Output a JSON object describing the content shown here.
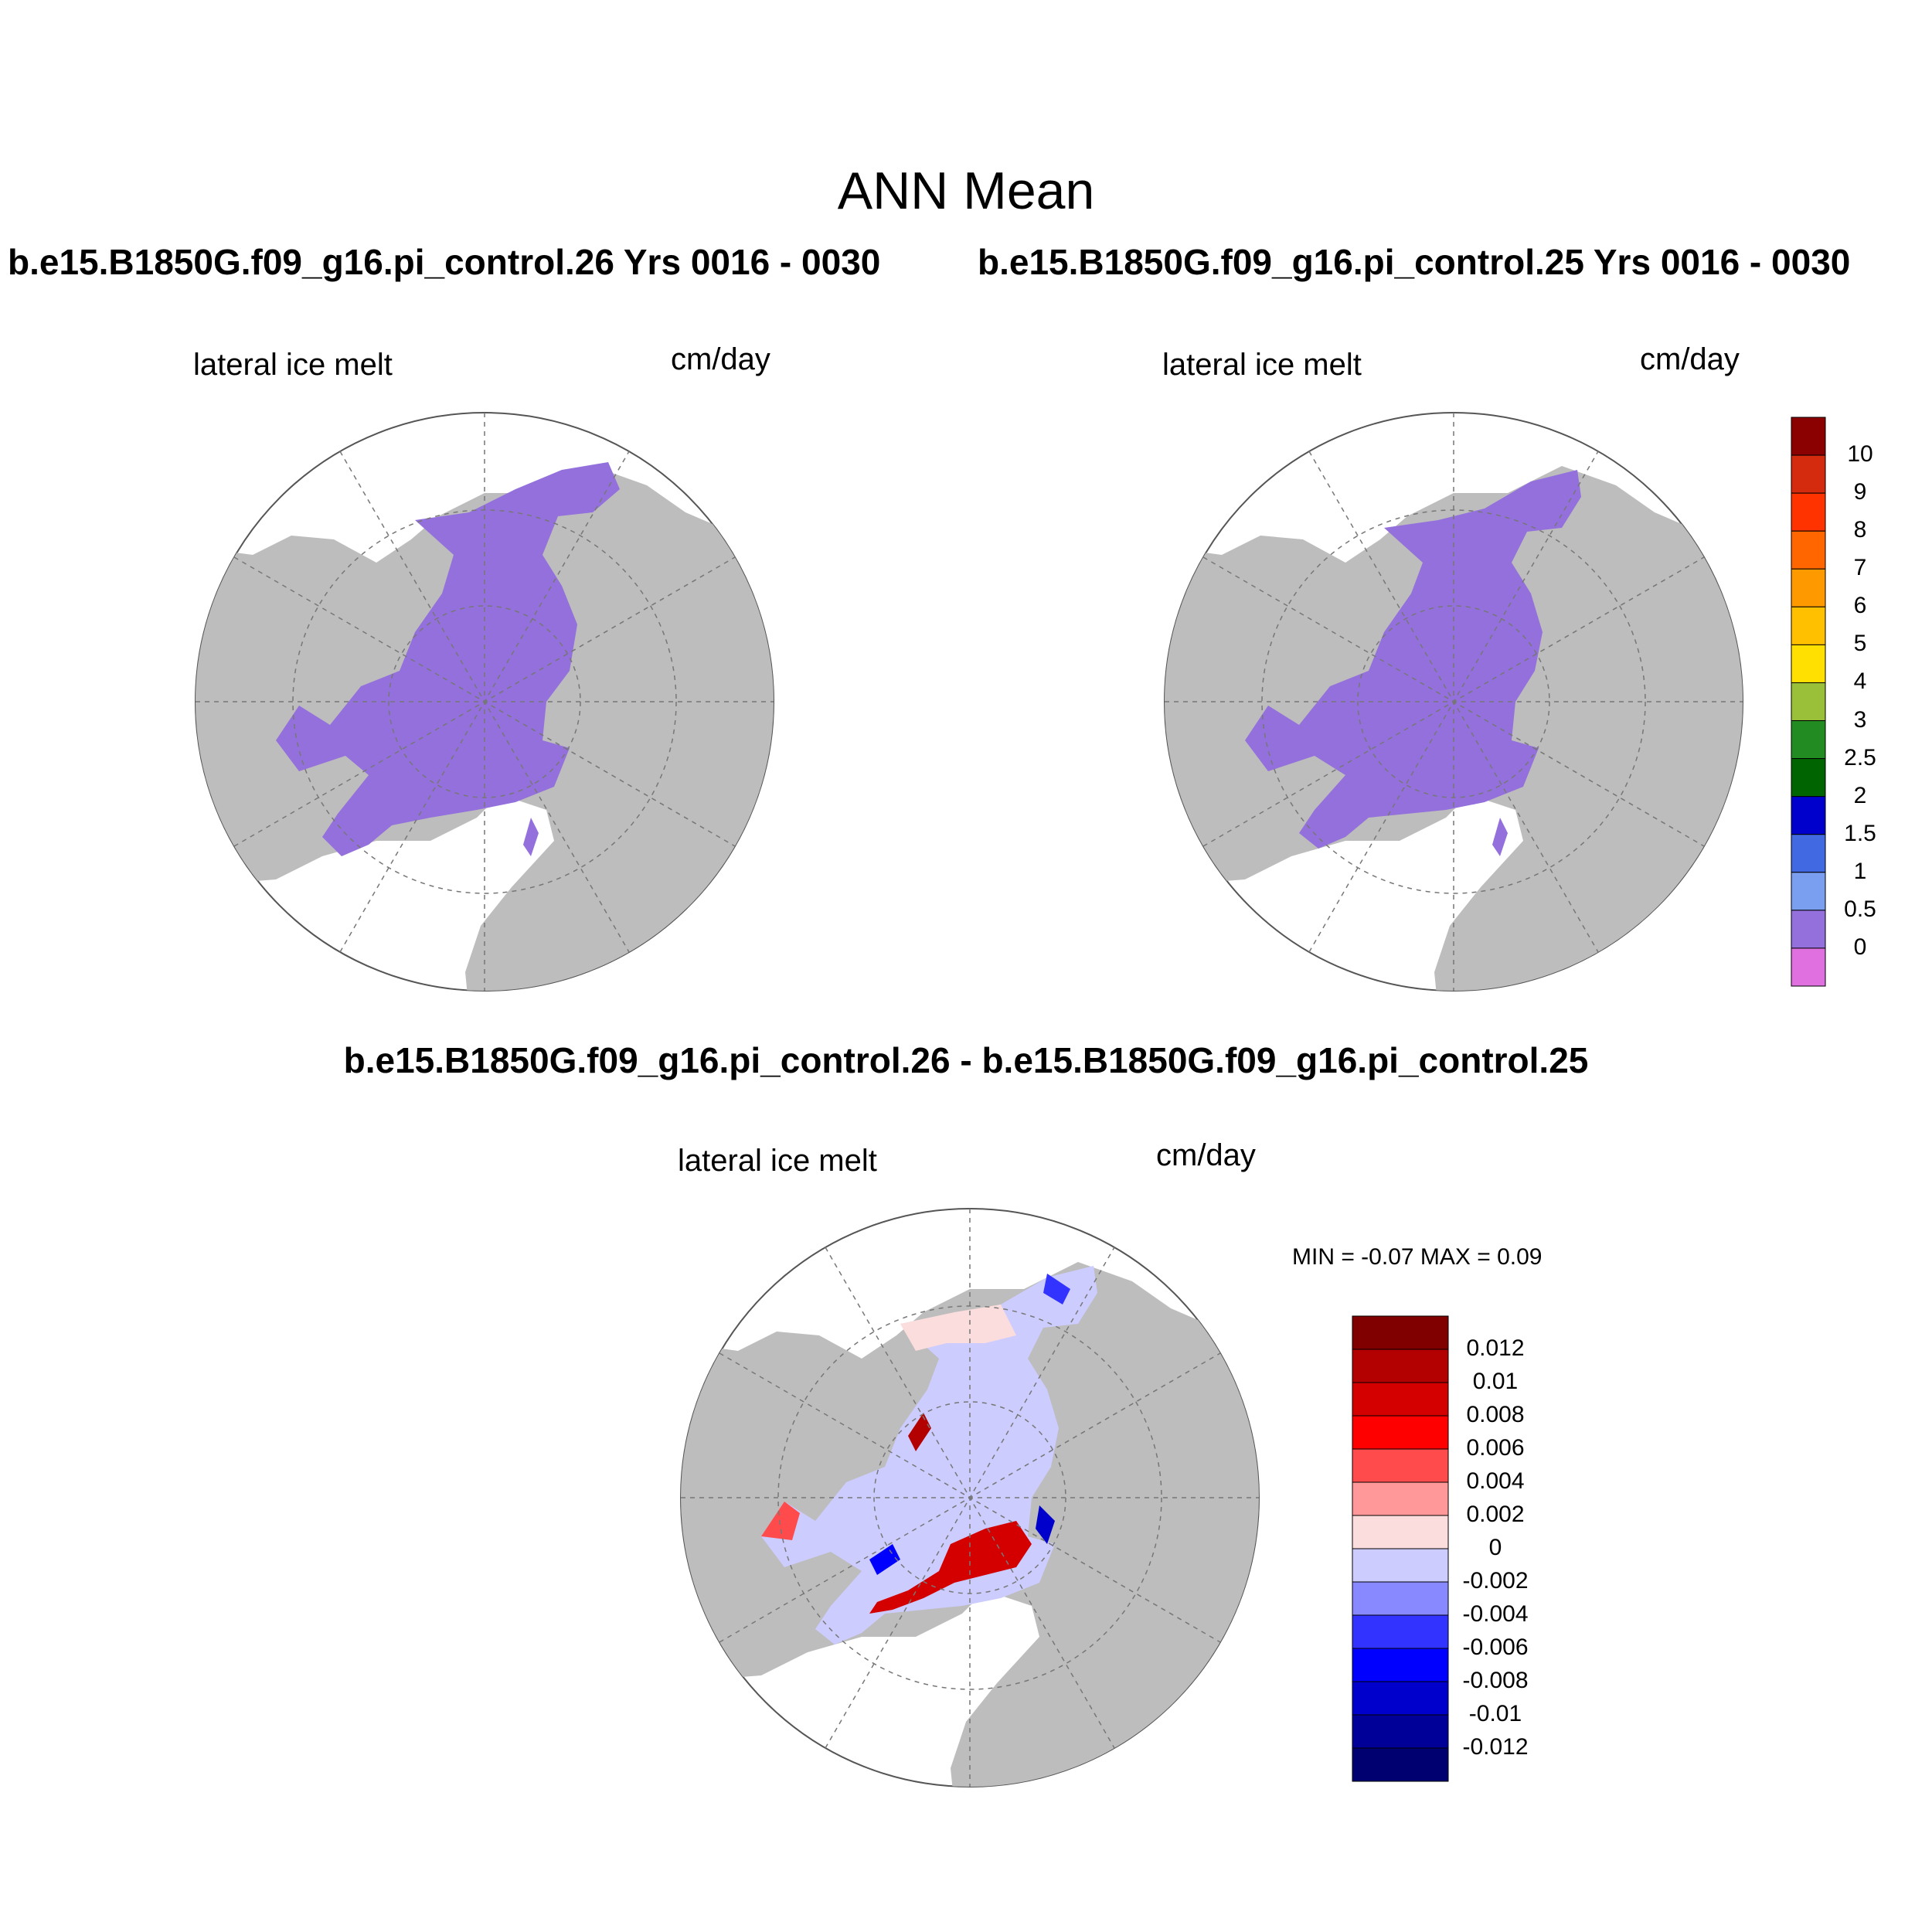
{
  "title": "ANN Mean",
  "panels": {
    "left": {
      "run_title": "b.e15.B1850G.f09_g16.pi_control.26  Yrs 0016 - 0030",
      "variable": "lateral ice melt",
      "units": "cm/day"
    },
    "right": {
      "run_title": "b.e15.B1850G.f09_g16.pi_control.25  Yrs 0016 - 0030",
      "variable": "lateral ice melt",
      "units": "cm/day"
    },
    "diff": {
      "title": "b.e15.B1850G.f09_g16.pi_control.26 - b.e15.B1850G.f09_g16.pi_control.25",
      "variable": "lateral ice melt",
      "units": "cm/day",
      "minmax": "MIN =  -0.07 MAX =   0.09"
    }
  },
  "colors": {
    "land": "#bdbdbd",
    "ocean": "#ffffff",
    "ice_field": "#9370db"
  },
  "chart_data": [
    {
      "type": "heatmap",
      "projection": "north polar stereographic",
      "panel": "pi_control.26",
      "field": "lateral ice melt",
      "units": "cm/day",
      "dominant_level": "0 - 0.5"
    },
    {
      "type": "heatmap",
      "projection": "north polar stereographic",
      "panel": "pi_control.25",
      "field": "lateral ice melt",
      "units": "cm/day",
      "dominant_level": "0 - 0.5"
    },
    {
      "type": "heatmap",
      "projection": "north polar stereographic",
      "panel": "difference",
      "field": "lateral ice melt",
      "units": "cm/day",
      "min": -0.07,
      "max": 0.09
    }
  ],
  "colorbar_main": {
    "labels": [
      "10",
      "9",
      "8",
      "7",
      "6",
      "5",
      "4",
      "3",
      "2.5",
      "2",
      "1.5",
      "1",
      "0.5",
      "0"
    ],
    "colors": [
      "#8b0000",
      "#d42a0e",
      "#ff3300",
      "#ff6600",
      "#ff9900",
      "#ffc000",
      "#ffe000",
      "#9ac03a",
      "#228b22",
      "#006400",
      "#0000cd",
      "#4169e1",
      "#7b9ff0",
      "#9370db",
      "#e070e0"
    ]
  },
  "colorbar_diff": {
    "labels": [
      "0.012",
      "0.01",
      "0.008",
      "0.006",
      "0.004",
      "0.002",
      "0",
      "-0.002",
      "-0.004",
      "-0.006",
      "-0.008",
      "-0.01",
      "-0.012"
    ],
    "colors": [
      "#800000",
      "#b30000",
      "#d40000",
      "#ff0000",
      "#ff4b4b",
      "#ff9999",
      "#fbdddd",
      "#ccccff",
      "#8888ff",
      "#3333ff",
      "#0000ff",
      "#0000cc",
      "#000099",
      "#000070"
    ]
  }
}
